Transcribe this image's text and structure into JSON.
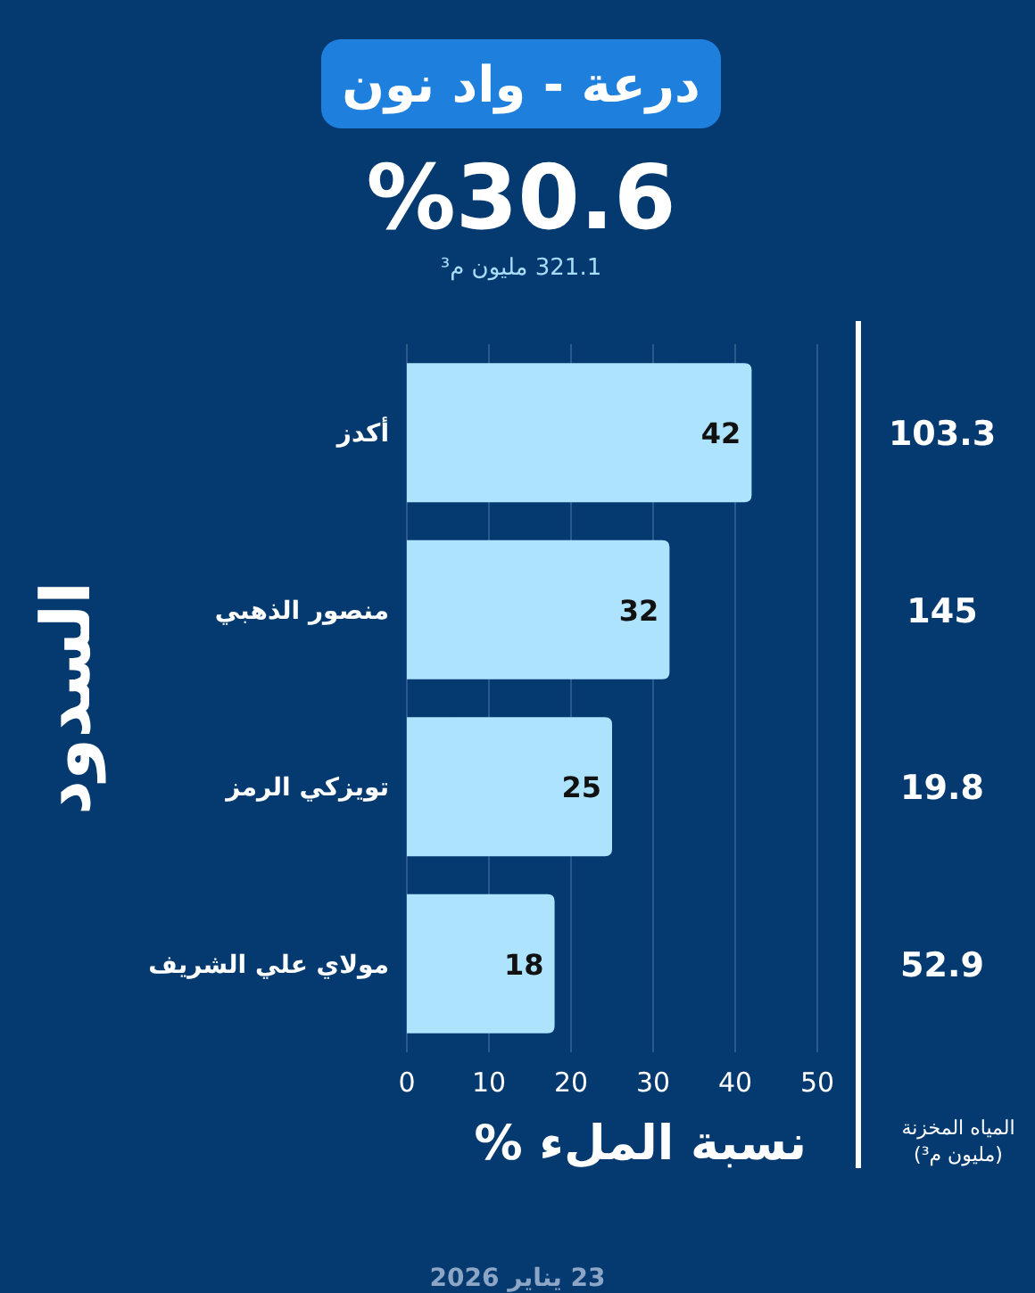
{
  "chart_data": {
    "type": "bar",
    "orientation": "horizontal",
    "title": "درعة - واد نون",
    "subtitle": "%30.6",
    "ylabel": "السدود",
    "xlabel": "نسبة الملء %",
    "categories": [
      "أكدز",
      "منصور الذهبي",
      "تويزكي الرمز",
      "مولاي علي الشريف"
    ],
    "values": [
      42,
      32,
      25,
      18
    ],
    "color": "#aee3fd",
    "data_labels": true,
    "xlim": [
      0,
      50
    ],
    "xticks": [
      0,
      10,
      20,
      30,
      40,
      50
    ],
    "grid": "x",
    "legend": false,
    "annotations": [
      "321.1 مليون م³",
      "103.3",
      "145",
      "19.8",
      "52.9",
      "المياه المخزنة (مليون م³)",
      "23 يناير 2026"
    ]
  }
}
